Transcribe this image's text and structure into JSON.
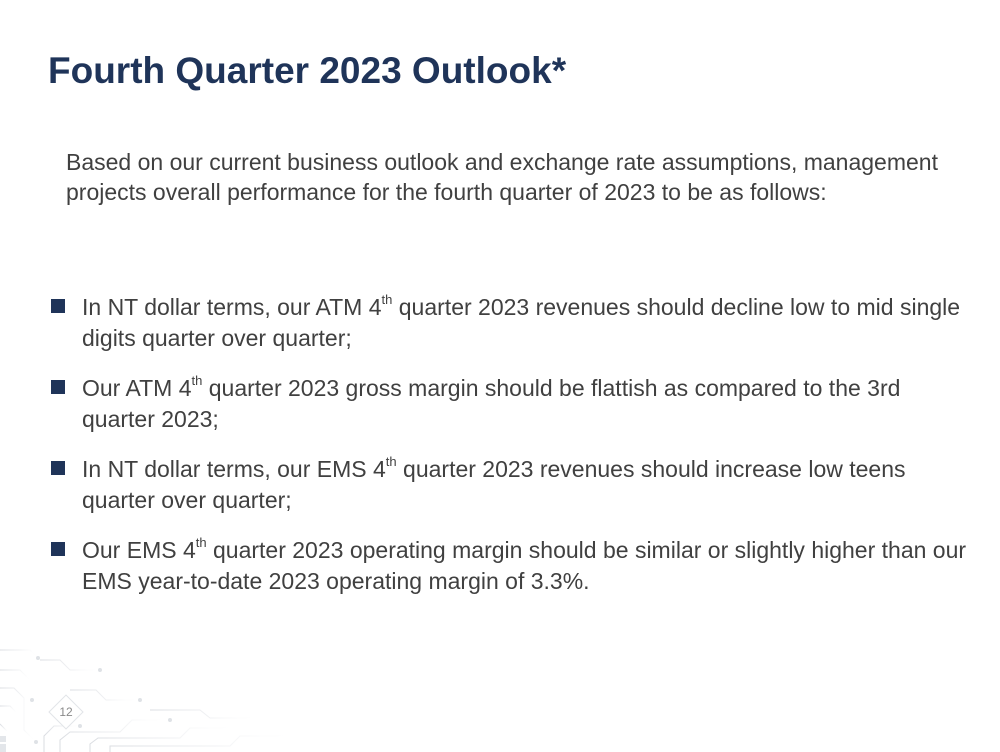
{
  "slide": {
    "title": "Fourth Quarter 2023 Outlook*",
    "intro": "Based on our current business outlook and exchange rate assumptions, management projects overall performance for the fourth quarter of 2023 to be as follows:",
    "page_number": "12",
    "accent_color": "#1f3459",
    "text_color": "#404040"
  },
  "bullets": [
    {
      "before_sup": "In NT dollar terms, our ATM 4",
      "sup": "th",
      "after_sup": " quarter 2023 revenues should decline low to mid single digits quarter over quarter;"
    },
    {
      "before_sup": "Our ATM 4",
      "sup": "th",
      "after_sup": " quarter 2023 gross margin should be flattish as compared to the 3rd quarter 2023;"
    },
    {
      "before_sup": "In NT dollar terms, our EMS 4",
      "sup": "th",
      "after_sup": " quarter 2023 revenues should increase low teens quarter over quarter;"
    },
    {
      "before_sup": "Our EMS 4",
      "sup": "th",
      "after_sup": " quarter 2023 operating margin should be similar or slightly higher than our EMS year-to-date 2023 operating margin of 3.3%."
    }
  ]
}
